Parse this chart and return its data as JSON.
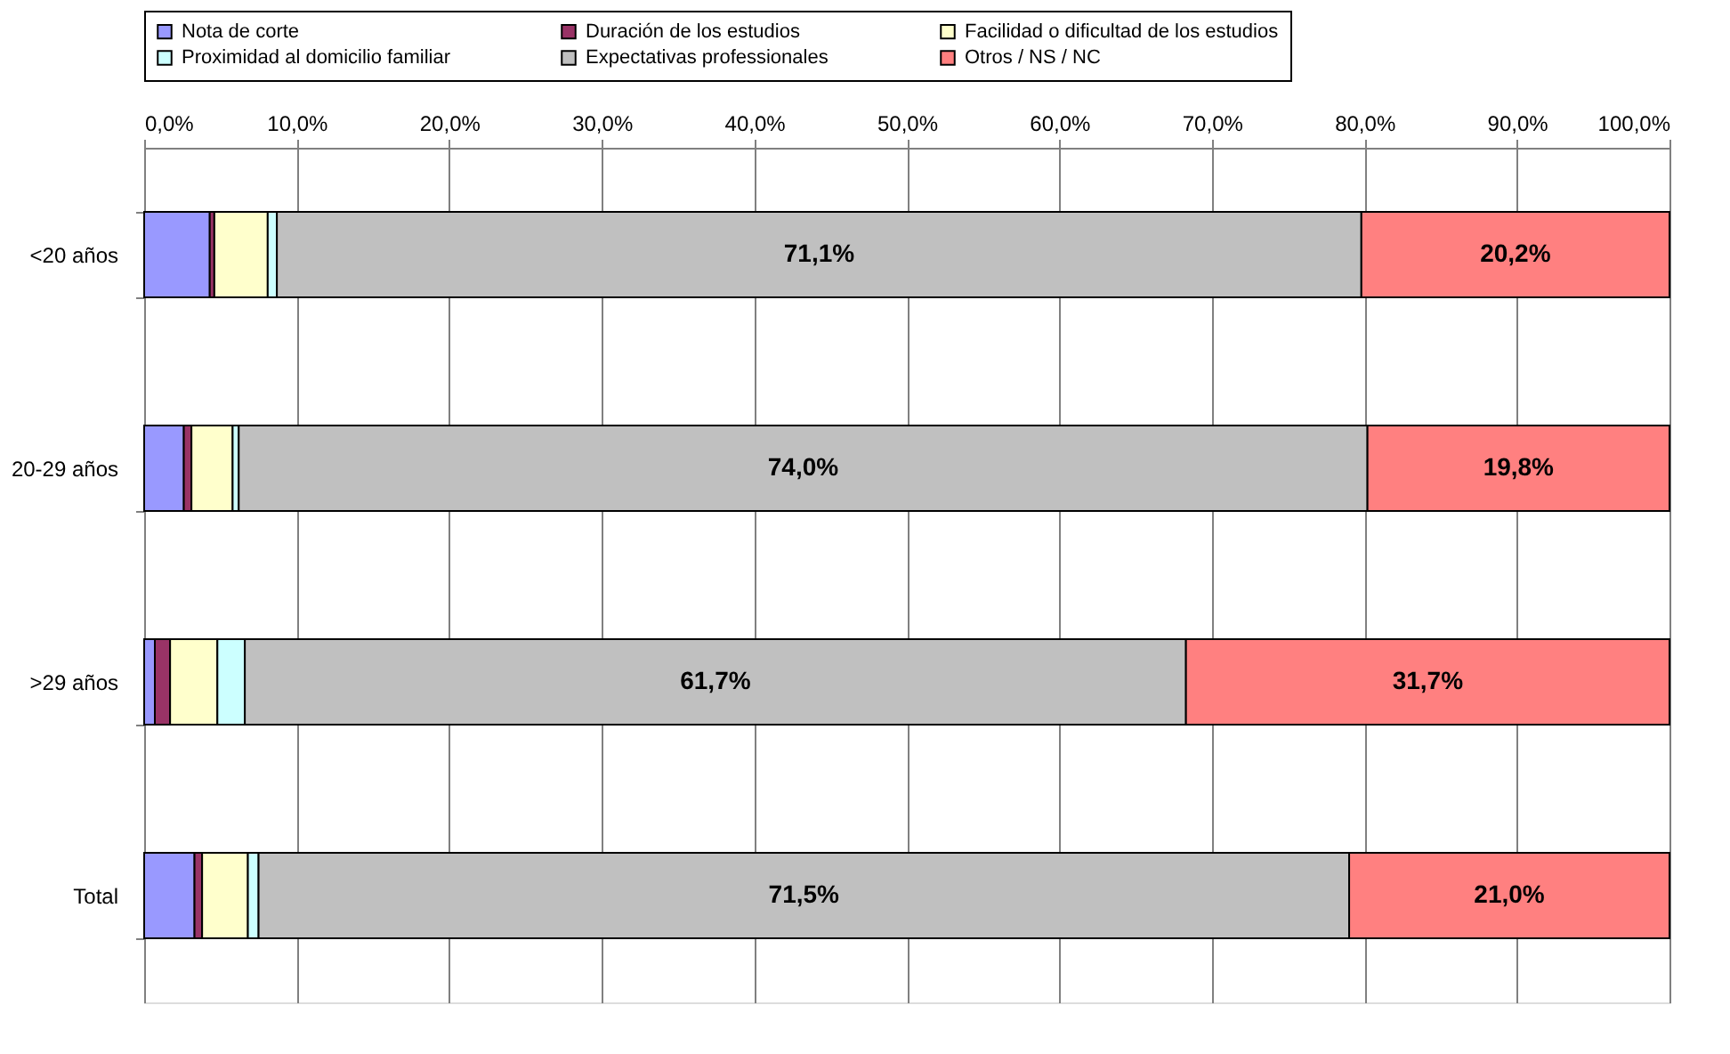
{
  "chart_data": {
    "type": "bar",
    "orientation": "horizontal",
    "stacked": true,
    "categories": [
      "<20 años",
      "20-29 años",
      ">29 años",
      "Total"
    ],
    "series": [
      {
        "name": "Nota de corte",
        "color": "#9999ff",
        "values": [
          4.3,
          2.6,
          0.7,
          3.3
        ]
      },
      {
        "name": "Duración de los estudios",
        "color": "#993366",
        "values": [
          0.3,
          0.5,
          1.0,
          0.5
        ]
      },
      {
        "name": "Facilidad o dificultad de los estudios",
        "color": "#ffffcc",
        "values": [
          3.5,
          2.7,
          3.1,
          3.0
        ]
      },
      {
        "name": "Proximidad al domicilio familiar",
        "color": "#ccffff",
        "values": [
          0.6,
          0.4,
          1.8,
          0.7
        ]
      },
      {
        "name": "Expectativas professionales",
        "color": "#c0c0c0",
        "values": [
          71.1,
          74.0,
          61.7,
          71.5
        ],
        "value_labels": [
          "71,1%",
          "74,0%",
          "61,7%",
          "71,5%"
        ]
      },
      {
        "name": "Otros / NS / NC",
        "color": "#ff8080",
        "values": [
          20.2,
          19.8,
          31.7,
          21.0
        ],
        "value_labels": [
          "20,2%",
          "19,8%",
          "31,7%",
          "21,0%"
        ]
      }
    ],
    "xlim": [
      0,
      100
    ],
    "xticks": [
      {
        "value": 0,
        "label": "0,0%"
      },
      {
        "value": 10,
        "label": "10,0%"
      },
      {
        "value": 20,
        "label": "20,0%"
      },
      {
        "value": 30,
        "label": "30,0%"
      },
      {
        "value": 40,
        "label": "40,0%"
      },
      {
        "value": 50,
        "label": "50,0%"
      },
      {
        "value": 60,
        "label": "60,0%"
      },
      {
        "value": 70,
        "label": "70,0%"
      },
      {
        "value": 80,
        "label": "80,0%"
      },
      {
        "value": 90,
        "label": "90,0%"
      },
      {
        "value": 100,
        "label": "100,0%"
      }
    ],
    "grid": "x",
    "legend": "top"
  }
}
